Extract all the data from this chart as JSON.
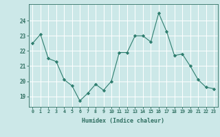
{
  "x": [
    0,
    1,
    2,
    3,
    4,
    5,
    6,
    7,
    8,
    9,
    10,
    11,
    12,
    13,
    14,
    15,
    16,
    17,
    18,
    19,
    20,
    21,
    22,
    23
  ],
  "y": [
    22.5,
    23.1,
    21.5,
    21.3,
    20.1,
    19.7,
    18.7,
    19.2,
    19.8,
    19.4,
    20.0,
    21.9,
    21.9,
    23.0,
    23.0,
    22.6,
    24.5,
    23.3,
    21.7,
    21.8,
    21.0,
    20.1,
    19.6,
    19.5
  ],
  "line_color": "#2e7d6e",
  "marker": "D",
  "marker_size": 2.2,
  "bg_color": "#cce8e8",
  "grid_color": "#ffffff",
  "xlabel": "Humidex (Indice chaleur)",
  "xtick_labels": [
    "0",
    "1",
    "2",
    "3",
    "4",
    "5",
    "6",
    "7",
    "8",
    "9",
    "10",
    "11",
    "12",
    "13",
    "14",
    "15",
    "16",
    "17",
    "18",
    "19",
    "20",
    "21",
    "22",
    "23"
  ],
  "ytick_labels": [
    "19",
    "20",
    "21",
    "22",
    "23",
    "24"
  ],
  "yticks": [
    19,
    20,
    21,
    22,
    23,
    24
  ],
  "ylim": [
    18.3,
    25.1
  ],
  "xlim": [
    -0.5,
    23.5
  ],
  "tick_color": "#2e6e60",
  "label_color": "#2e6e60"
}
